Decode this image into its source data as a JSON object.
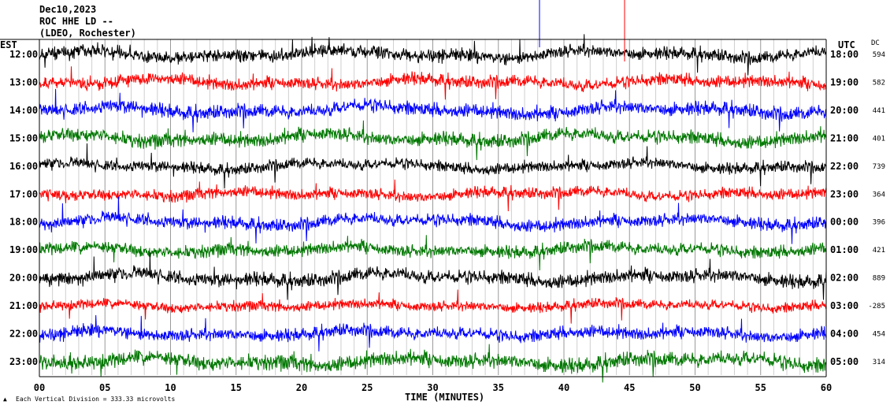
{
  "header": {
    "date": "Dec10,2023",
    "station": "ROC HHE LD --",
    "location": "(LDEO, Rochester)"
  },
  "footer": {
    "scale_note": "Each Vertical Division = 333.33 microvolts"
  },
  "chart_data": {
    "type": "line",
    "title": "",
    "xlabel": "TIME (MINUTES)",
    "left_axis_label": "EST",
    "right_axis_label": "UTC",
    "dc_label": "DC",
    "xlim": [
      0,
      60
    ],
    "x_ticks": [
      "00",
      "05",
      "10",
      "15",
      "20",
      "25",
      "30",
      "35",
      "40",
      "45",
      "50",
      "55",
      "60"
    ],
    "grid": "vertical-every-minute",
    "line_colors": [
      "#000000",
      "#ff0000",
      "#0000ff",
      "#007700"
    ],
    "traces": [
      {
        "est": "12:00",
        "utc": "18:00",
        "dc": "594",
        "color": "#000000",
        "amp": 1.0
      },
      {
        "est": "13:00",
        "utc": "19:00",
        "dc": "582",
        "color": "#ff0000",
        "amp": 1.0
      },
      {
        "est": "14:00",
        "utc": "20:00",
        "dc": "441",
        "color": "#0000ff",
        "amp": 1.1
      },
      {
        "est": "15:00",
        "utc": "21:00",
        "dc": "401",
        "color": "#007700",
        "amp": 1.1
      },
      {
        "est": "16:00",
        "utc": "22:00",
        "dc": "739",
        "color": "#000000",
        "amp": 0.9
      },
      {
        "est": "17:00",
        "utc": "23:00",
        "dc": "364",
        "color": "#ff0000",
        "amp": 0.9
      },
      {
        "est": "18:00",
        "utc": "00:00",
        "dc": "396",
        "color": "#0000ff",
        "amp": 1.0
      },
      {
        "est": "19:00",
        "utc": "01:00",
        "dc": "421",
        "color": "#007700",
        "amp": 1.0
      },
      {
        "est": "20:00",
        "utc": "02:00",
        "dc": "889",
        "color": "#000000",
        "amp": 1.1
      },
      {
        "est": "21:00",
        "utc": "03:00",
        "dc": "-285",
        "color": "#ff0000",
        "amp": 0.8
      },
      {
        "est": "22:00",
        "utc": "04:00",
        "dc": "454",
        "color": "#0000ff",
        "amp": 1.0
      },
      {
        "est": "23:00",
        "utc": "05:00",
        "dc": "314",
        "color": "#007700",
        "amp": 1.2
      }
    ]
  }
}
